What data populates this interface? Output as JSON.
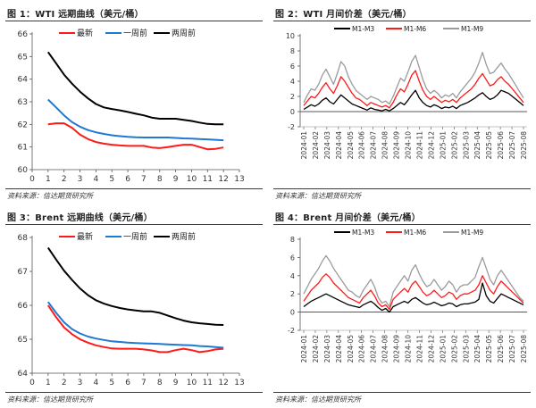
{
  "source_label": "资料来源：信达期货研究所",
  "chart_data": [
    {
      "id": "wti-curve",
      "type": "line",
      "title": "图 1：WTI 远期曲线（美元/桶）",
      "xlabel": "",
      "ylabel": "",
      "xlim": [
        0,
        13
      ],
      "ylim": [
        60,
        66
      ],
      "xticks": [
        0,
        1,
        2,
        3,
        4,
        5,
        6,
        7,
        8,
        9,
        10,
        11,
        12,
        13
      ],
      "yticks": [
        60,
        61,
        62,
        63,
        64,
        65,
        66
      ],
      "legend_position": "top",
      "series": [
        {
          "name": "最新",
          "color": "#ff1a1a",
          "x": [
            1,
            1.5,
            2,
            2.5,
            3,
            3.5,
            4,
            4.5,
            5,
            5.5,
            6,
            6.5,
            7,
            7.5,
            8,
            8.5,
            9,
            9.5,
            10,
            10.5,
            11,
            11.5,
            12
          ],
          "values": [
            62.0,
            62.05,
            62.05,
            61.85,
            61.55,
            61.35,
            61.22,
            61.15,
            61.1,
            61.07,
            61.05,
            61.05,
            61.05,
            60.98,
            60.95,
            61.0,
            61.05,
            61.1,
            61.1,
            61.0,
            60.9,
            60.92,
            60.98
          ]
        },
        {
          "name": "一周前",
          "color": "#1f78d1",
          "x": [
            1,
            1.5,
            2,
            2.5,
            3,
            3.5,
            4,
            4.5,
            5,
            5.5,
            6,
            6.5,
            7,
            7.5,
            8,
            8.5,
            9,
            9.5,
            10,
            10.5,
            11,
            11.5,
            12
          ],
          "values": [
            63.1,
            62.75,
            62.4,
            62.1,
            61.9,
            61.75,
            61.65,
            61.58,
            61.52,
            61.48,
            61.45,
            61.43,
            61.42,
            61.42,
            61.42,
            61.42,
            61.4,
            61.38,
            61.37,
            61.35,
            61.34,
            61.32,
            61.3
          ]
        },
        {
          "name": "两周前",
          "color": "#000000",
          "x": [
            1,
            1.5,
            2,
            2.5,
            3,
            3.5,
            4,
            4.5,
            5,
            5.5,
            6,
            6.5,
            7,
            7.5,
            8,
            8.5,
            9,
            9.5,
            10,
            10.5,
            11,
            11.5,
            12
          ],
          "values": [
            65.2,
            64.7,
            64.2,
            63.8,
            63.45,
            63.15,
            62.9,
            62.75,
            62.68,
            62.62,
            62.55,
            62.47,
            62.4,
            62.3,
            62.25,
            62.25,
            62.25,
            62.2,
            62.15,
            62.08,
            62.02,
            62.0,
            62.0
          ]
        }
      ]
    },
    {
      "id": "wti-spread",
      "type": "line",
      "title": "图 2：WTI 月间价差（美元/桶）",
      "xlabel": "",
      "ylabel": "",
      "ylim": [
        -2,
        10
      ],
      "yticks": [
        -2,
        0,
        2,
        4,
        6,
        8,
        10
      ],
      "time_range": [
        "2024-01",
        "2025-08"
      ],
      "xticks": [
        "2024-01",
        "2024-02",
        "2024-03",
        "2024-04",
        "2024-05",
        "2024-06",
        "2024-07",
        "2024-08",
        "2024-09",
        "2024-10",
        "2024-11",
        "2024-12",
        "2025-01",
        "2025-02",
        "2025-03",
        "2025-04",
        "2025-05",
        "2025-06",
        "2025-07",
        "2025-08"
      ],
      "legend_position": "top",
      "series": [
        {
          "name": "M1-M3",
          "color": "#000000",
          "values": [
            0.3,
            0.6,
            0.9,
            0.7,
            1.0,
            1.5,
            1.8,
            1.3,
            1.0,
            1.6,
            2.2,
            1.8,
            1.4,
            1.0,
            0.8,
            0.6,
            0.4,
            0.2,
            0.5,
            0.3,
            0.2,
            0.1,
            0.3,
            0.1,
            0.4,
            0.8,
            1.2,
            0.9,
            1.5,
            2.2,
            2.8,
            1.8,
            1.2,
            0.8,
            0.6,
            0.9,
            0.7,
            0.4,
            0.6,
            0.5,
            0.7,
            0.4,
            0.8,
            1.0,
            1.2,
            1.5,
            1.8,
            2.2,
            2.5,
            2.0,
            1.6,
            1.8,
            2.2,
            2.8,
            2.6,
            2.4,
            2.0,
            1.6,
            1.2,
            0.8
          ]
        },
        {
          "name": "M1-M6",
          "color": "#ff1a1a",
          "values": [
            0.8,
            1.4,
            2.0,
            1.8,
            2.4,
            3.2,
            3.8,
            3.0,
            2.4,
            3.4,
            4.6,
            4.0,
            3.2,
            2.4,
            1.8,
            1.6,
            1.2,
            0.8,
            1.2,
            1.0,
            0.8,
            0.6,
            0.8,
            0.5,
            1.2,
            2.2,
            3.0,
            2.6,
            3.6,
            4.8,
            5.4,
            4.0,
            2.8,
            2.0,
            1.6,
            2.0,
            1.6,
            1.2,
            1.5,
            1.3,
            1.6,
            1.2,
            1.8,
            2.2,
            2.6,
            3.0,
            3.6,
            4.4,
            5.0,
            4.2,
            3.4,
            3.6,
            4.2,
            4.6,
            4.0,
            3.6,
            3.0,
            2.4,
            1.8,
            1.2
          ]
        },
        {
          "name": "M1-M9",
          "color": "#9b9b9b",
          "values": [
            1.2,
            2.2,
            3.0,
            2.8,
            3.6,
            4.8,
            5.6,
            4.6,
            3.6,
            5.0,
            6.6,
            6.0,
            4.6,
            3.6,
            2.8,
            2.4,
            2.0,
            1.6,
            2.0,
            1.8,
            1.6,
            1.2,
            1.4,
            1.0,
            2.0,
            3.2,
            4.4,
            4.0,
            5.2,
            6.6,
            7.4,
            5.8,
            4.2,
            3.0,
            2.4,
            2.8,
            2.4,
            1.8,
            2.2,
            2.0,
            2.4,
            1.8,
            2.6,
            3.2,
            3.8,
            4.4,
            5.2,
            6.4,
            7.8,
            6.2,
            5.0,
            5.2,
            5.8,
            6.4,
            5.6,
            5.0,
            4.2,
            3.4,
            2.6,
            1.8
          ]
        }
      ]
    },
    {
      "id": "brent-curve",
      "type": "line",
      "title": "图 3：Brent 远期曲线（美元/桶）",
      "xlabel": "",
      "ylabel": "",
      "xlim": [
        0,
        13
      ],
      "ylim": [
        64,
        68
      ],
      "xticks": [
        0,
        1,
        2,
        3,
        4,
        5,
        6,
        7,
        8,
        9,
        10,
        11,
        12,
        13
      ],
      "yticks": [
        64,
        65,
        66,
        67,
        68
      ],
      "legend_position": "top",
      "series": [
        {
          "name": "最新",
          "color": "#ff1a1a",
          "x": [
            1,
            1.5,
            2,
            2.5,
            3,
            3.5,
            4,
            4.5,
            5,
            5.5,
            6,
            6.5,
            7,
            7.5,
            8,
            8.5,
            9,
            9.5,
            10,
            10.5,
            11,
            11.5,
            12
          ],
          "values": [
            66.0,
            65.65,
            65.35,
            65.15,
            65.0,
            64.9,
            64.82,
            64.77,
            64.73,
            64.72,
            64.72,
            64.72,
            64.7,
            64.67,
            64.62,
            64.62,
            64.68,
            64.72,
            64.68,
            64.62,
            64.65,
            64.7,
            64.72
          ]
        },
        {
          "name": "一周前",
          "color": "#1f78d1",
          "x": [
            1,
            1.5,
            2,
            2.5,
            3,
            3.5,
            4,
            4.5,
            5,
            5.5,
            6,
            6.5,
            7,
            7.5,
            8,
            8.5,
            9,
            9.5,
            10,
            10.5,
            11,
            11.5,
            12
          ],
          "values": [
            66.1,
            65.78,
            65.5,
            65.3,
            65.17,
            65.08,
            65.02,
            64.98,
            64.94,
            64.92,
            64.9,
            64.89,
            64.88,
            64.87,
            64.86,
            64.85,
            64.84,
            64.83,
            64.82,
            64.8,
            64.79,
            64.77,
            64.75
          ]
        },
        {
          "name": "两周前",
          "color": "#000000",
          "x": [
            1,
            1.5,
            2,
            2.5,
            3,
            3.5,
            4,
            4.5,
            5,
            5.5,
            6,
            6.5,
            7,
            7.5,
            8,
            8.5,
            9,
            9.5,
            10,
            10.5,
            11,
            11.5,
            12
          ],
          "values": [
            67.7,
            67.35,
            67.02,
            66.75,
            66.5,
            66.3,
            66.15,
            66.05,
            65.98,
            65.92,
            65.88,
            65.85,
            65.82,
            65.82,
            65.78,
            65.7,
            65.62,
            65.55,
            65.5,
            65.47,
            65.45,
            65.43,
            65.42
          ]
        }
      ]
    },
    {
      "id": "brent-spread",
      "type": "line",
      "title": "图 4：Brent 月间价差（美元/桶）",
      "xlabel": "",
      "ylabel": "",
      "ylim": [
        -2,
        8
      ],
      "yticks": [
        -2,
        0,
        2,
        4,
        6,
        8
      ],
      "time_range": [
        "2024-01",
        "2025-08"
      ],
      "xticks": [
        "2024-01",
        "2024-02",
        "2024-03",
        "2024-04",
        "2024-05",
        "2024-06",
        "2024-07",
        "2024-08",
        "2024-09",
        "2024-10",
        "2024-11",
        "2024-12",
        "2025-01",
        "2025-02",
        "2025-03",
        "2025-04",
        "2025-05",
        "2025-06",
        "2025-07",
        "2025-08"
      ],
      "legend_position": "top",
      "series": [
        {
          "name": "M1-M3",
          "color": "#000000",
          "values": [
            0.6,
            0.9,
            1.2,
            1.4,
            1.6,
            1.8,
            2.0,
            1.8,
            1.6,
            1.4,
            1.2,
            1.0,
            0.8,
            0.7,
            0.6,
            0.5,
            0.8,
            1.0,
            1.2,
            0.9,
            0.5,
            0.2,
            0.4,
            0.0,
            0.6,
            0.8,
            1.0,
            1.2,
            1.0,
            1.4,
            1.6,
            1.3,
            1.0,
            0.8,
            0.9,
            1.1,
            0.9,
            0.7,
            0.8,
            1.0,
            0.9,
            0.6,
            0.8,
            0.9,
            0.9,
            1.0,
            1.1,
            1.4,
            3.2,
            1.8,
            1.2,
            1.0,
            1.5,
            2.0,
            1.8,
            1.6,
            1.4,
            1.2,
            1.0,
            0.8
          ]
        },
        {
          "name": "M1-M6",
          "color": "#ff1a1a",
          "values": [
            1.2,
            1.8,
            2.4,
            2.8,
            3.2,
            3.8,
            4.2,
            3.8,
            3.2,
            2.8,
            2.4,
            2.0,
            1.6,
            1.4,
            1.2,
            1.0,
            1.6,
            2.0,
            2.4,
            1.8,
            1.0,
            0.6,
            0.8,
            0.3,
            1.4,
            1.8,
            2.2,
            2.6,
            2.2,
            3.0,
            3.4,
            2.8,
            2.2,
            1.8,
            2.0,
            2.4,
            2.0,
            1.6,
            1.8,
            2.2,
            2.0,
            1.4,
            1.8,
            2.0,
            2.0,
            2.2,
            2.4,
            3.0,
            4.0,
            3.2,
            2.4,
            2.0,
            2.8,
            3.4,
            3.0,
            2.6,
            2.2,
            1.8,
            1.4,
            1.0
          ]
        },
        {
          "name": "M1-M9",
          "color": "#9b9b9b",
          "values": [
            2.0,
            2.8,
            3.6,
            4.2,
            4.8,
            5.6,
            6.2,
            5.6,
            4.8,
            4.2,
            3.6,
            3.0,
            2.4,
            2.2,
            1.8,
            1.6,
            2.4,
            3.0,
            3.6,
            2.8,
            1.6,
            1.0,
            1.2,
            0.6,
            2.2,
            2.8,
            3.4,
            4.0,
            3.4,
            4.6,
            5.2,
            4.2,
            3.4,
            2.8,
            3.0,
            3.6,
            3.0,
            2.4,
            2.8,
            3.4,
            3.0,
            2.2,
            2.8,
            3.0,
            3.0,
            3.4,
            3.8,
            5.0,
            6.0,
            4.8,
            3.6,
            3.0,
            4.0,
            4.6,
            4.0,
            3.4,
            2.8,
            2.2,
            1.6,
            1.2
          ]
        }
      ]
    }
  ]
}
